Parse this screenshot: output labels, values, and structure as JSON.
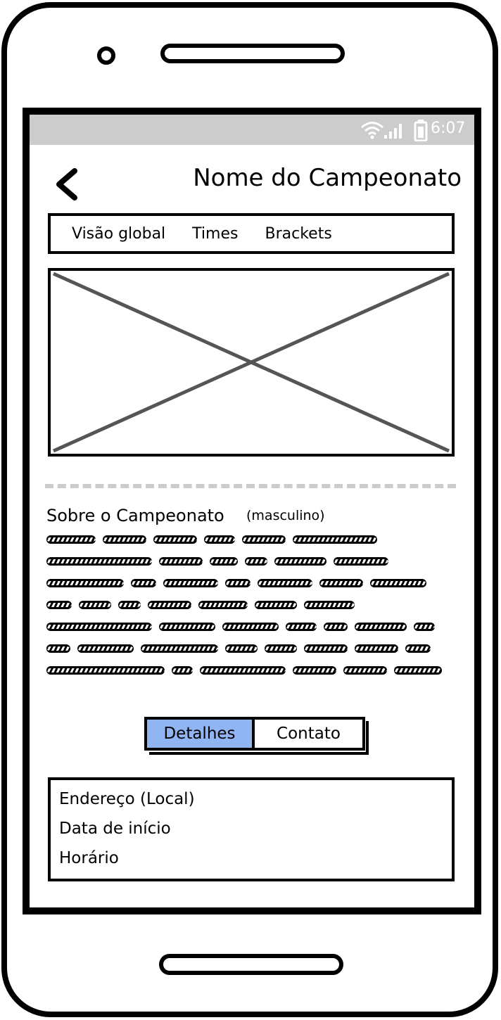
{
  "status_bar": {
    "time": "6:07",
    "icons": [
      "wifi-icon",
      "signal-icon",
      "battery-icon"
    ]
  },
  "header": {
    "title": "Nome do Campeonato",
    "back_icon": "chevron-left-icon"
  },
  "tabs": [
    {
      "label": "Visão global"
    },
    {
      "label": "Times"
    },
    {
      "label": "Brackets"
    }
  ],
  "about": {
    "heading": "Sobre o Campeonato",
    "tag": "(masculino)"
  },
  "segmented_control": {
    "options": [
      {
        "label": "Detalhes",
        "selected": true
      },
      {
        "label": "Contato",
        "selected": false
      }
    ],
    "active_color": "#91b4f2"
  },
  "details": {
    "rows": [
      {
        "label": "Endereço (Local)"
      },
      {
        "label": "Data de início"
      },
      {
        "label": "Horário"
      }
    ]
  },
  "colors": {
    "status_bar_bg": "#cccccc",
    "placeholder_cross": "#555555",
    "divider": "#cccccc"
  }
}
